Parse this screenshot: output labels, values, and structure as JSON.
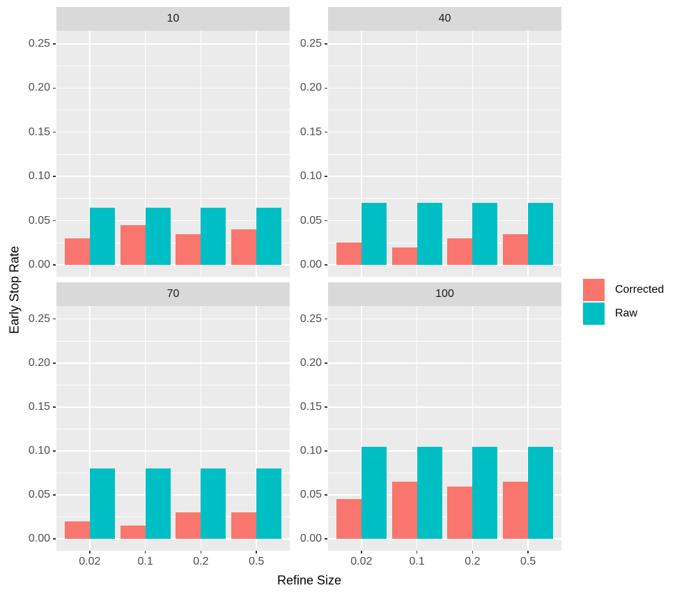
{
  "chart_data": {
    "type": "bar",
    "facet_variable_values": [
      "10",
      "40",
      "70",
      "100"
    ],
    "categories": [
      "0.02",
      "0.1",
      "0.2",
      "0.5"
    ],
    "xlabel": "Refine Size",
    "ylabel": "Early Stop Rate",
    "ylim": [
      0,
      0.25
    ],
    "y_tick_labels": [
      "0.00",
      "0.05",
      "0.10",
      "0.15",
      "0.20",
      "0.25"
    ],
    "y_tick_values": [
      0,
      0.05,
      0.1,
      0.15,
      0.2,
      0.25
    ],
    "y_minor_values": [
      0.025,
      0.075,
      0.125,
      0.175,
      0.225
    ],
    "grid": "on",
    "legend_position": "right",
    "panels": [
      {
        "label": "10",
        "series": [
          {
            "name": "Corrected",
            "values": [
              0.03,
              0.045,
              0.035,
              0.04
            ]
          },
          {
            "name": "Raw",
            "values": [
              0.065,
              0.065,
              0.065,
              0.065
            ]
          }
        ]
      },
      {
        "label": "40",
        "series": [
          {
            "name": "Corrected",
            "values": [
              0.025,
              0.02,
              0.03,
              0.035
            ]
          },
          {
            "name": "Raw",
            "values": [
              0.07,
              0.07,
              0.07,
              0.07
            ]
          }
        ]
      },
      {
        "label": "70",
        "series": [
          {
            "name": "Corrected",
            "values": [
              0.02,
              0.015,
              0.03,
              0.03
            ]
          },
          {
            "name": "Raw",
            "values": [
              0.08,
              0.08,
              0.08,
              0.08
            ]
          }
        ]
      },
      {
        "label": "100",
        "series": [
          {
            "name": "Corrected",
            "values": [
              0.045,
              0.065,
              0.06,
              0.065
            ]
          },
          {
            "name": "Raw",
            "values": [
              0.105,
              0.105,
              0.105,
              0.105
            ]
          }
        ]
      }
    ],
    "legend": [
      {
        "label": "Corrected",
        "color": "#F8766D"
      },
      {
        "label": "Raw",
        "color": "#00BFC4"
      }
    ],
    "colors": {
      "corrected": "#F8766D",
      "raw": "#00BFC4",
      "panel_bg": "#EBEBEB",
      "strip_bg": "#D9D9D9",
      "grid": "#FFFFFF",
      "axis_text": "#4D4D4D",
      "tick_mark": "#333333",
      "strip_text": "#1A1A1A"
    }
  }
}
